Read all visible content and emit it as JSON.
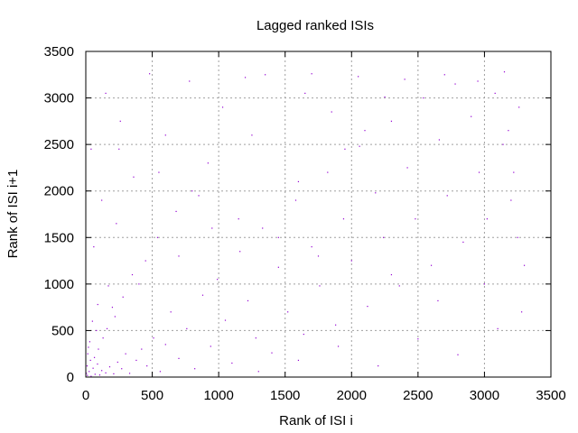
{
  "chart_data": {
    "type": "scatter",
    "title": "Lagged ranked ISIs",
    "xlabel": "Rank of ISI i",
    "ylabel": "Rank of ISI i+1",
    "xlim": [
      0,
      3500
    ],
    "ylim": [
      0,
      3500
    ],
    "xticks": [
      0,
      500,
      1000,
      1500,
      2000,
      2500,
      3000,
      3500
    ],
    "yticks": [
      0,
      500,
      1000,
      1500,
      2000,
      2500,
      3000,
      3500
    ],
    "grid": true,
    "legend": "none",
    "point_color": "#9400d3",
    "x_max_rank": 3300,
    "y_max_rank": 3300,
    "points": [
      [
        12,
        18
      ],
      [
        25,
        60
      ],
      [
        40,
        8
      ],
      [
        55,
        95
      ],
      [
        70,
        30
      ],
      [
        88,
        140
      ],
      [
        105,
        22
      ],
      [
        120,
        70
      ],
      [
        35,
        180
      ],
      [
        150,
        45
      ],
      [
        15,
        250
      ],
      [
        65,
        210
      ],
      [
        180,
        110
      ],
      [
        95,
        300
      ],
      [
        210,
        35
      ],
      [
        240,
        160
      ],
      [
        30,
        380
      ],
      [
        130,
        420
      ],
      [
        270,
        90
      ],
      [
        300,
        250
      ],
      [
        160,
        520
      ],
      [
        50,
        600
      ],
      [
        330,
        40
      ],
      [
        380,
        180
      ],
      [
        220,
        650
      ],
      [
        420,
        300
      ],
      [
        90,
        780
      ],
      [
        460,
        120
      ],
      [
        510,
        420
      ],
      [
        280,
        860
      ],
      [
        560,
        60
      ],
      [
        600,
        350
      ],
      [
        170,
        980
      ],
      [
        640,
        700
      ],
      [
        700,
        200
      ],
      [
        350,
        1100
      ],
      [
        760,
        520
      ],
      [
        820,
        90
      ],
      [
        450,
        1250
      ],
      [
        880,
        880
      ],
      [
        940,
        330
      ],
      [
        60,
        1400
      ],
      [
        990,
        1050
      ],
      [
        1050,
        610
      ],
      [
        540,
        1500
      ],
      [
        1100,
        150
      ],
      [
        1160,
        1350
      ],
      [
        230,
        1650
      ],
      [
        1220,
        820
      ],
      [
        1280,
        420
      ],
      [
        680,
        1780
      ],
      [
        1330,
        1600
      ],
      [
        1400,
        260
      ],
      [
        120,
        1900
      ],
      [
        1450,
        1180
      ],
      [
        1520,
        700
      ],
      [
        800,
        2000
      ],
      [
        1580,
        1900
      ],
      [
        1640,
        460
      ],
      [
        360,
        2150
      ],
      [
        1700,
        1400
      ],
      [
        1760,
        980
      ],
      [
        920,
        2300
      ],
      [
        1820,
        2200
      ],
      [
        1880,
        560
      ],
      [
        40,
        2450
      ],
      [
        1940,
        1700
      ],
      [
        2000,
        1250
      ],
      [
        600,
        2600
      ],
      [
        2060,
        2480
      ],
      [
        2120,
        760
      ],
      [
        260,
        2750
      ],
      [
        2180,
        1980
      ],
      [
        2240,
        1500
      ],
      [
        1030,
        2900
      ],
      [
        2300,
        2750
      ],
      [
        2360,
        980
      ],
      [
        150,
        3050
      ],
      [
        2420,
        2250
      ],
      [
        2480,
        1700
      ],
      [
        780,
        3180
      ],
      [
        2540,
        3000
      ],
      [
        2600,
        1200
      ],
      [
        480,
        3260
      ],
      [
        2660,
        2550
      ],
      [
        2720,
        1950
      ],
      [
        1200,
        3220
      ],
      [
        2780,
        3150
      ],
      [
        2840,
        1450
      ],
      [
        2900,
        2800
      ],
      [
        2960,
        2200
      ],
      [
        3020,
        1700
      ],
      [
        3080,
        3050
      ],
      [
        3140,
        2500
      ],
      [
        3200,
        1900
      ],
      [
        3260,
        2900
      ],
      [
        1300,
        60
      ],
      [
        1600,
        180
      ],
      [
        1900,
        330
      ],
      [
        2200,
        120
      ],
      [
        2500,
        410
      ],
      [
        2800,
        240
      ],
      [
        3100,
        520
      ],
      [
        3280,
        700
      ],
      [
        2650,
        820
      ],
      [
        3000,
        1000
      ],
      [
        2300,
        1100
      ],
      [
        1750,
        1300
      ],
      [
        1450,
        1500
      ],
      [
        1150,
        1700
      ],
      [
        850,
        1950
      ],
      [
        550,
        2200
      ],
      [
        250,
        2450
      ],
      [
        2100,
        2650
      ],
      [
        1850,
        2850
      ],
      [
        1650,
        3050
      ],
      [
        1350,
        3250
      ],
      [
        3150,
        3280
      ],
      [
        2950,
        3180
      ],
      [
        2400,
        3200
      ],
      [
        2050,
        3230
      ],
      [
        1700,
        3260
      ],
      [
        3300,
        1200
      ],
      [
        3250,
        1500
      ],
      [
        3220,
        2200
      ],
      [
        3180,
        2650
      ],
      [
        2700,
        3250
      ],
      [
        2250,
        3010
      ],
      [
        1950,
        2450
      ],
      [
        1600,
        2100
      ],
      [
        1250,
        2600
      ],
      [
        950,
        1600
      ],
      [
        700,
        1300
      ],
      [
        400,
        1000
      ],
      [
        200,
        750
      ],
      [
        80,
        500
      ],
      [
        20,
        320
      ],
      [
        10,
        120
      ],
      [
        5,
        40
      ]
    ]
  }
}
